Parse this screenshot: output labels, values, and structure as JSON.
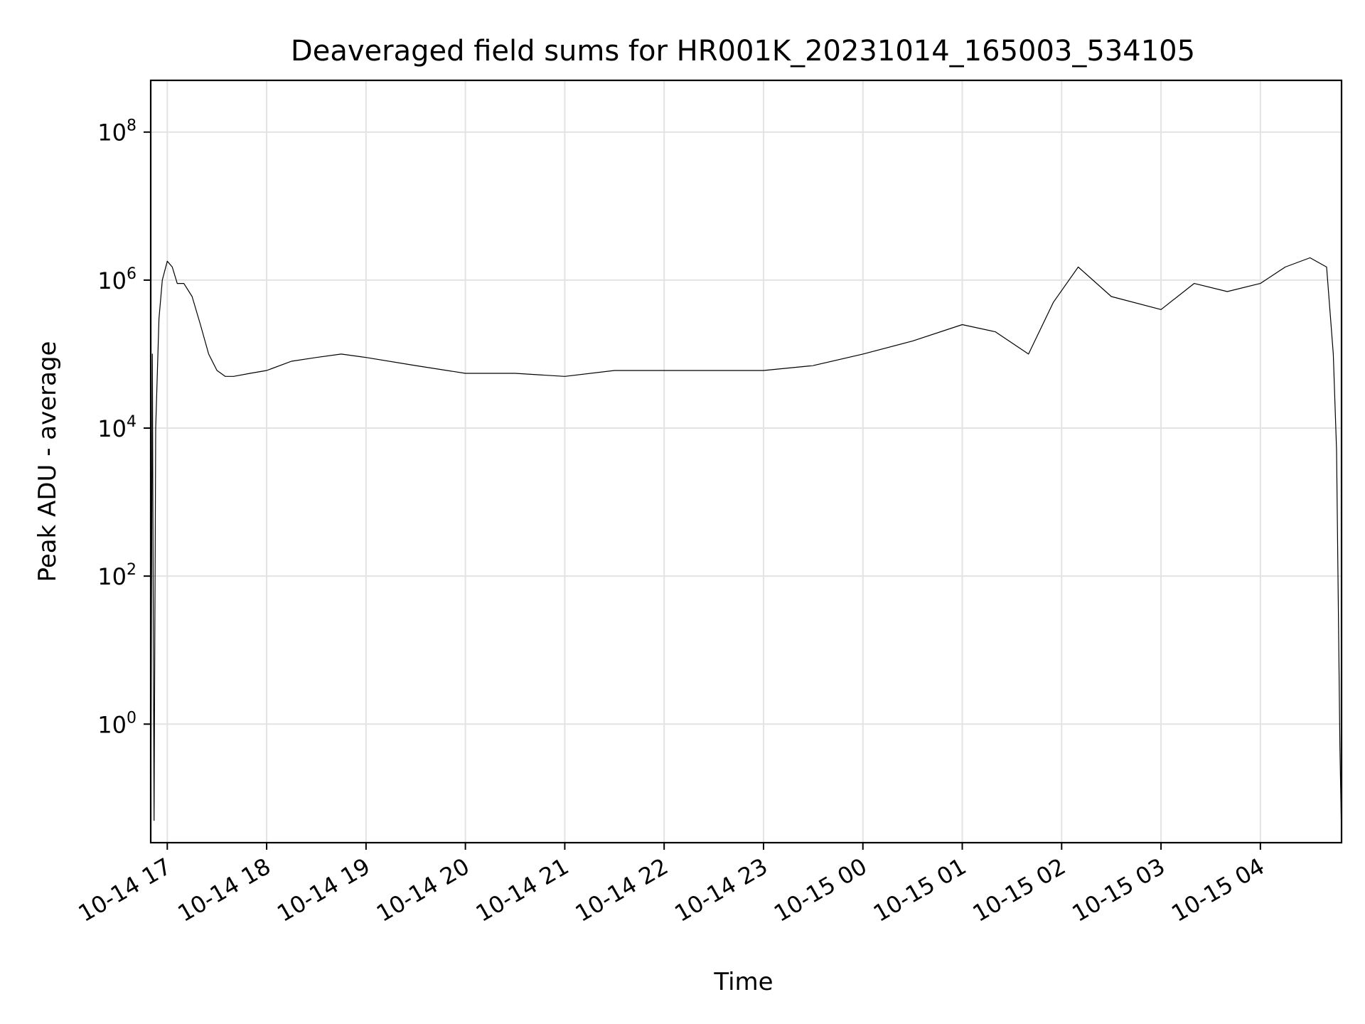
{
  "chart_data": {
    "type": "line",
    "title": "Deaveraged field sums for HR001K_20231014_165003_534105",
    "xlabel": "Time",
    "ylabel": "Peak ADU - average",
    "yscale": "log",
    "grid": true,
    "line_color": "#000000",
    "xlim": [
      "2023-10-14 16:50",
      "2023-10-15 04:49"
    ],
    "ylim": [
      0.025,
      500000000
    ],
    "x_ticks": [
      "2023-10-14 17:00",
      "2023-10-14 18:00",
      "2023-10-14 19:00",
      "2023-10-14 20:00",
      "2023-10-14 21:00",
      "2023-10-14 22:00",
      "2023-10-14 23:00",
      "2023-10-15 00:00",
      "2023-10-15 01:00",
      "2023-10-15 02:00",
      "2023-10-15 03:00",
      "2023-10-15 04:00"
    ],
    "x_tick_labels": [
      "10-14 17",
      "10-14 18",
      "10-14 19",
      "10-14 20",
      "10-14 21",
      "10-14 22",
      "10-14 23",
      "10-15 00",
      "10-15 01",
      "10-15 02",
      "10-15 03",
      "10-15 04"
    ],
    "y_ticks": [
      1,
      100,
      10000,
      1000000,
      100000000
    ],
    "y_tick_labels": [
      {
        "base": "10",
        "exp": "0"
      },
      {
        "base": "10",
        "exp": "2"
      },
      {
        "base": "10",
        "exp": "4"
      },
      {
        "base": "10",
        "exp": "6"
      },
      {
        "base": "10",
        "exp": "8"
      }
    ],
    "series": [
      {
        "x": [
          "2023-10-14 16:50",
          "2023-10-14 16:51",
          "2023-10-14 16:52",
          "2023-10-14 16:53",
          "2023-10-14 16:55",
          "2023-10-14 16:57",
          "2023-10-14 17:00",
          "2023-10-14 17:03",
          "2023-10-14 17:06",
          "2023-10-14 17:10",
          "2023-10-14 17:15",
          "2023-10-14 17:20",
          "2023-10-14 17:25",
          "2023-10-14 17:30",
          "2023-10-14 17:35",
          "2023-10-14 17:40",
          "2023-10-14 17:50",
          "2023-10-14 18:00",
          "2023-10-14 18:15",
          "2023-10-14 18:30",
          "2023-10-14 18:45",
          "2023-10-14 19:00",
          "2023-10-14 19:30",
          "2023-10-14 20:00",
          "2023-10-14 20:30",
          "2023-10-14 21:00",
          "2023-10-14 21:30",
          "2023-10-14 22:00",
          "2023-10-14 22:30",
          "2023-10-14 23:00",
          "2023-10-14 23:30",
          "2023-10-15 00:00",
          "2023-10-15 00:30",
          "2023-10-15 01:00",
          "2023-10-15 01:20",
          "2023-10-15 01:40",
          "2023-10-15 01:55",
          "2023-10-15 02:10",
          "2023-10-15 02:30",
          "2023-10-15 03:00",
          "2023-10-15 03:20",
          "2023-10-15 03:40",
          "2023-10-15 04:00",
          "2023-10-15 04:15",
          "2023-10-15 04:30",
          "2023-10-15 04:40",
          "2023-10-15 04:44",
          "2023-10-15 04:46",
          "2023-10-15 04:48",
          "2023-10-15 04:49"
        ],
        "y": [
          0.03,
          100000,
          0.05,
          10000,
          300000,
          1000000,
          1800000,
          1500000,
          900000,
          900000,
          600000,
          250000,
          100000,
          60000,
          50000,
          50000,
          55000,
          60000,
          80000,
          90000,
          100000,
          90000,
          70000,
          55000,
          55000,
          50000,
          60000,
          60000,
          60000,
          60000,
          70000,
          100000,
          150000,
          250000,
          200000,
          100000,
          500000,
          1500000,
          600000,
          400000,
          900000,
          700000,
          900000,
          1500000,
          2000000,
          1500000,
          100000,
          5000,
          0.5,
          0.03
        ]
      }
    ],
    "annotations": []
  }
}
